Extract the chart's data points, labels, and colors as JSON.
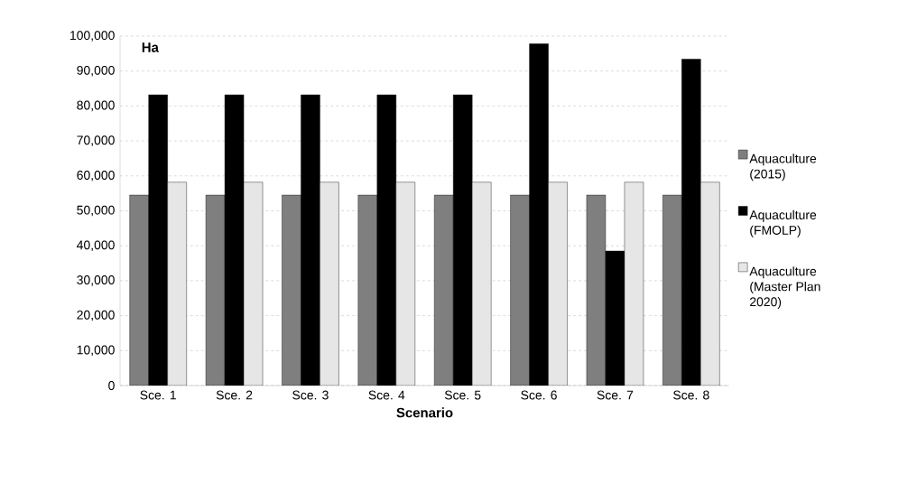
{
  "chart_data": {
    "type": "bar",
    "xlabel": "Scenario",
    "annotations": [
      "Ha"
    ],
    "categories": [
      "Sce. 1",
      "Sce. 2",
      "Sce. 3",
      "Sce. 4",
      "Sce. 5",
      "Sce. 6",
      "Sce. 7",
      "Sce. 8"
    ],
    "series": [
      {
        "name": "Aquaculture (2015)",
        "color": "#7f7f7f",
        "values": [
          54500,
          54500,
          54500,
          54500,
          54500,
          54500,
          54500,
          54500
        ]
      },
      {
        "name": "Aquaculture (FMOLP)",
        "color": "#000000",
        "values": [
          83200,
          83200,
          83200,
          83200,
          83200,
          97800,
          38500,
          93400
        ]
      },
      {
        "name": "Aquaculture (Master Plan 2020)",
        "color": "#e6e6e6",
        "values": [
          58200,
          58200,
          58200,
          58200,
          58200,
          58200,
          58200,
          58200
        ]
      }
    ],
    "ylim": [
      0,
      100000
    ],
    "yticks": [
      0,
      {
        "value": 10000,
        "label": "10,000"
      },
      {
        "value": 20000,
        "label": "20,000"
      },
      {
        "value": 30000,
        "label": "30,000"
      },
      {
        "value": 40000,
        "label": "40,000"
      },
      {
        "value": 50000,
        "label": "50,000"
      },
      {
        "value": 60000,
        "label": "60,000"
      },
      {
        "value": 70000,
        "label": "70,000"
      },
      {
        "value": 80000,
        "label": "80,000"
      },
      {
        "value": 90000,
        "label": "90,000"
      },
      {
        "value": 100000,
        "label": "100,000"
      }
    ],
    "grid": "y",
    "legend": "right"
  }
}
